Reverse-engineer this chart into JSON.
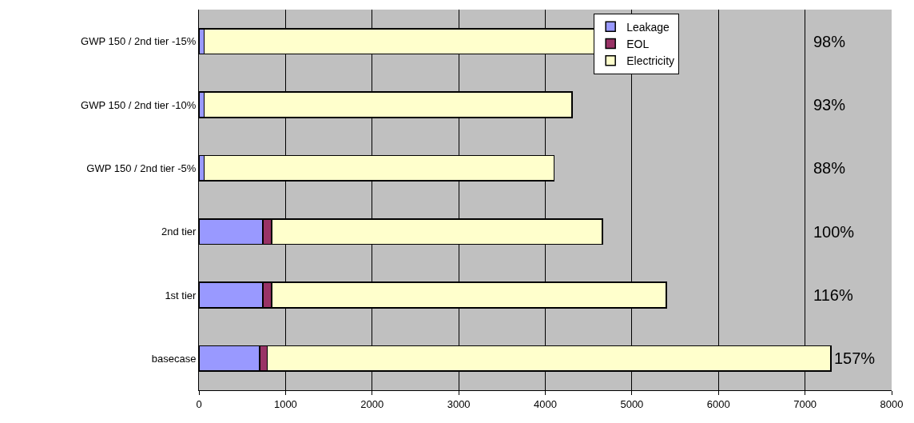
{
  "chart_data": {
    "type": "bar",
    "orientation": "horizontal",
    "stacked": true,
    "categories": [
      "GWP 150 / 2nd tier -15%",
      "GWP 150 / 2nd tier -10%",
      "GWP 150 / 2nd tier -5%",
      "2nd tier",
      "1st tier",
      "basecase"
    ],
    "series": [
      {
        "name": "Leakage",
        "color": "#9999ff",
        "values": [
          60,
          60,
          60,
          740,
          740,
          700
        ]
      },
      {
        "name": "EOL",
        "color": "#993366",
        "values": [
          0,
          0,
          0,
          100,
          100,
          90
        ]
      },
      {
        "name": "Electricity",
        "color": "#ffffcc",
        "values": [
          4510,
          4250,
          4040,
          3820,
          4560,
          6510
        ]
      }
    ],
    "xlim": [
      0,
      8000
    ],
    "xticks": [
      0,
      1000,
      2000,
      3000,
      4000,
      5000,
      6000,
      7000,
      8000
    ],
    "grid": "x",
    "legend": "top",
    "annotations": [
      "98%",
      "93%",
      "88%",
      "100%",
      "116%",
      "157%"
    ]
  }
}
